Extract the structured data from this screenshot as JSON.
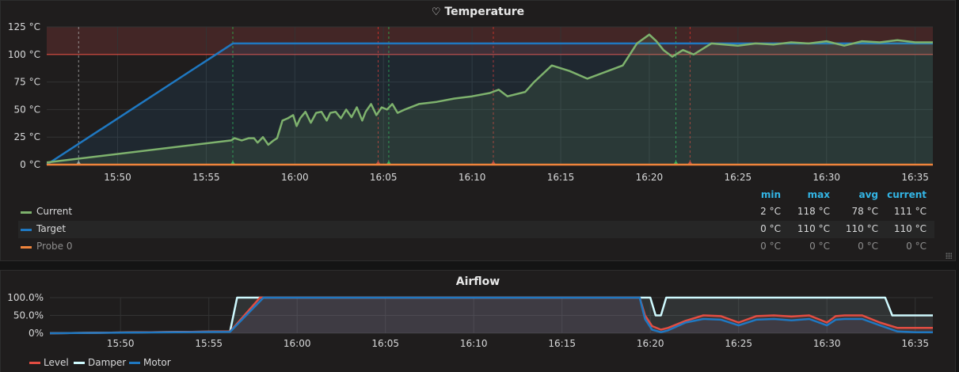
{
  "temperature": {
    "title": "Temperature",
    "icon": "heart-icon",
    "legend_headers": [
      "min",
      "max",
      "avg",
      "current"
    ],
    "legend": [
      {
        "name": "Current",
        "color": "#7eb26d",
        "min": "2 °C",
        "max": "118 °C",
        "avg": "78 °C",
        "current": "111 °C"
      },
      {
        "name": "Target",
        "color": "#1f78c1",
        "min": "0 °C",
        "max": "110 °C",
        "avg": "110 °C",
        "current": "110 °C"
      },
      {
        "name": "Probe 0",
        "color": "#ef843c",
        "min": "0 °C",
        "max": "0 °C",
        "avg": "0 °C",
        "current": "0 °C"
      }
    ]
  },
  "airflow": {
    "title": "Airflow",
    "legend": [
      {
        "name": "Level",
        "color": "#e24d42"
      },
      {
        "name": "Damper",
        "color": "#cffaff"
      },
      {
        "name": "Motor",
        "color": "#1f78c1"
      }
    ]
  },
  "chart_data": [
    {
      "type": "line",
      "title": "Temperature",
      "x_ticks": [
        "15:50",
        "15:55",
        "16:00",
        "16:05",
        "16:10",
        "16:15",
        "16:20",
        "16:25",
        "16:30",
        "16:35"
      ],
      "x_tick_minutes": [
        4,
        9,
        14,
        19,
        24,
        29,
        34,
        39,
        44,
        49
      ],
      "xlim_minutes": [
        0,
        50
      ],
      "x_origin": "15:46",
      "y_ticks": [
        "0 °C",
        "25 °C",
        "50 °C",
        "75 °C",
        "100 °C",
        "125 °C"
      ],
      "ylim": [
        0,
        125
      ],
      "threshold": 100,
      "series": [
        {
          "name": "Target",
          "color": "#1f78c1",
          "x": [
            0,
            10.5,
            50
          ],
          "y": [
            0,
            110,
            110
          ]
        },
        {
          "name": "Current",
          "color": "#7eb26d",
          "x": [
            0,
            10.4,
            10.6,
            11,
            11.4,
            11.7,
            11.9,
            12.2,
            12.5,
            12.8,
            13.0,
            13.3,
            13.6,
            13.9,
            14.1,
            14.3,
            14.6,
            14.9,
            15.2,
            15.5,
            15.8,
            16.0,
            16.3,
            16.6,
            16.9,
            17.2,
            17.5,
            17.8,
            18.0,
            18.3,
            18.6,
            18.9,
            19.2,
            19.5,
            19.8,
            20.2,
            21,
            22,
            23,
            24,
            25,
            25.5,
            26,
            27,
            27.5,
            28.5,
            29.5,
            30.5,
            31.5,
            32.5,
            33.3,
            34,
            34.4,
            34.8,
            35.3,
            35.9,
            36.5,
            37.5,
            39,
            40,
            41,
            42,
            43,
            44,
            45,
            46,
            47,
            48,
            49,
            50
          ],
          "y": [
            2,
            22,
            24,
            22,
            24,
            24,
            20,
            25,
            18,
            22,
            24,
            40,
            42,
            45,
            35,
            42,
            48,
            38,
            47,
            48,
            40,
            47,
            48,
            42,
            50,
            43,
            52,
            40,
            48,
            55,
            45,
            52,
            50,
            55,
            47,
            50,
            55,
            57,
            60,
            62,
            65,
            68,
            62,
            66,
            75,
            90,
            85,
            78,
            84,
            90,
            110,
            118,
            112,
            104,
            98,
            104,
            100,
            110,
            108,
            110,
            109,
            111,
            110,
            112,
            108,
            112,
            111,
            113,
            111,
            111
          ]
        },
        {
          "name": "Probe 0",
          "color": "#ef843c",
          "x": [
            0,
            50
          ],
          "y": [
            0,
            0
          ]
        }
      ],
      "annotations_minutes": [
        1.8,
        10.5,
        18.7,
        19.3,
        25.2,
        35.5,
        36.3
      ]
    },
    {
      "type": "line",
      "title": "Airflow",
      "x_ticks": [
        "15:50",
        "15:55",
        "16:00",
        "16:05",
        "16:10",
        "16:15",
        "16:20",
        "16:25",
        "16:30",
        "16:35"
      ],
      "xlim_minutes": [
        0,
        50
      ],
      "y_ticks": [
        "0%",
        "50.0%",
        "100.0%"
      ],
      "ylim": [
        0,
        100
      ],
      "series": [
        {
          "name": "Level",
          "color": "#e24d42",
          "x": [
            0,
            10.2,
            11.9,
            33.4,
            33.7,
            34.1,
            34.6,
            35,
            36,
            37,
            38,
            39,
            40,
            41,
            42,
            43,
            44,
            44.5,
            45,
            46,
            47,
            48,
            49,
            50
          ],
          "y": [
            0,
            5,
            100,
            100,
            50,
            20,
            10,
            15,
            35,
            50,
            48,
            30,
            48,
            50,
            47,
            50,
            30,
            48,
            50,
            50,
            30,
            15,
            15,
            15
          ]
        },
        {
          "name": "Damper",
          "color": "#cffaff",
          "x": [
            0,
            10.2,
            10.6,
            34.0,
            34.3,
            34.6,
            34.9,
            35.2,
            47.3,
            47.7,
            50
          ],
          "y": [
            0,
            5,
            100,
            100,
            50,
            50,
            100,
            100,
            100,
            50,
            50
          ]
        },
        {
          "name": "Motor",
          "color": "#1f78c1",
          "x": [
            0,
            10.2,
            12.1,
            33.4,
            33.7,
            34.1,
            34.6,
            35,
            36,
            37,
            38,
            39,
            40,
            41,
            42,
            43,
            44,
            44.5,
            45,
            46,
            47,
            48,
            49,
            50
          ],
          "y": [
            0,
            4,
            100,
            100,
            40,
            10,
            3,
            8,
            30,
            40,
            38,
            22,
            38,
            40,
            36,
            40,
            22,
            38,
            40,
            40,
            22,
            5,
            3,
            3
          ]
        }
      ]
    }
  ]
}
